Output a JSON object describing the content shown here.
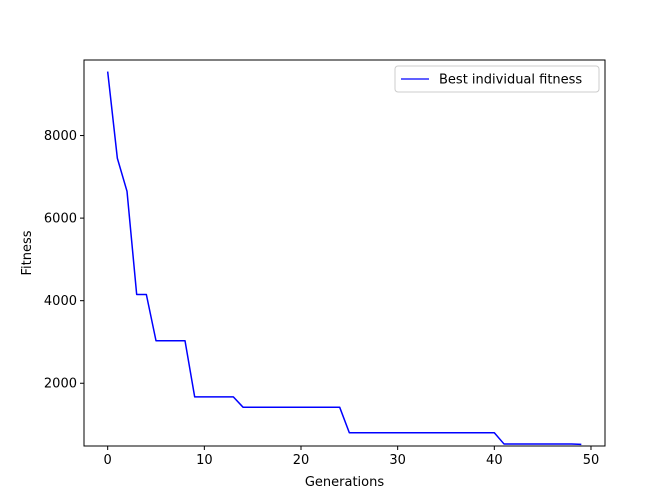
{
  "chart_data": {
    "type": "line",
    "title": "",
    "xlabel": "Generations",
    "ylabel": "Fitness",
    "xlim": [
      -2.45,
      51.45
    ],
    "ylim": [
      480,
      9830
    ],
    "xticks": [
      0,
      10,
      20,
      30,
      40,
      50
    ],
    "yticks": [
      2000,
      4000,
      6000,
      8000
    ],
    "xtick_labels": [
      "0",
      "10",
      "20",
      "30",
      "40",
      "50"
    ],
    "ytick_labels": [
      "2000",
      "4000",
      "6000",
      "8000"
    ],
    "grid": false,
    "legend_position": "top-right",
    "series": [
      {
        "name": "Best individual fitness",
        "color": "#0000ff",
        "x": [
          0,
          1,
          2,
          3,
          4,
          5,
          6,
          7,
          8,
          9,
          10,
          11,
          12,
          13,
          14,
          15,
          16,
          17,
          18,
          19,
          20,
          21,
          22,
          23,
          24,
          25,
          26,
          27,
          28,
          29,
          30,
          31,
          32,
          33,
          34,
          35,
          36,
          37,
          38,
          39,
          40,
          41,
          42,
          43,
          44,
          45,
          46,
          47,
          48,
          49
        ],
        "values": [
          9550,
          7450,
          6650,
          4150,
          4150,
          3030,
          3030,
          3030,
          3030,
          1670,
          1670,
          1670,
          1670,
          1670,
          1420,
          1420,
          1420,
          1420,
          1420,
          1420,
          1420,
          1420,
          1420,
          1420,
          1420,
          800,
          800,
          800,
          800,
          800,
          800,
          800,
          800,
          800,
          800,
          800,
          800,
          800,
          800,
          800,
          800,
          530,
          530,
          530,
          530,
          530,
          530,
          530,
          530,
          520
        ]
      }
    ]
  }
}
